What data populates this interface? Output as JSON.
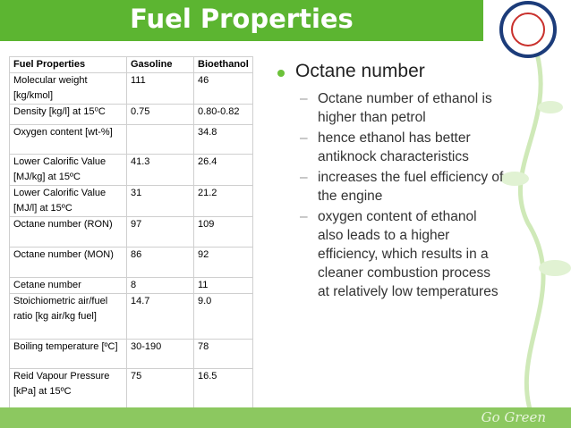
{
  "header": {
    "title": "Fuel Properties"
  },
  "table": {
    "columns": [
      "Fuel Properties",
      "Gasoline",
      "Bioethanol"
    ],
    "rows": [
      [
        "Molecular weight [kg/kmol]",
        "111",
        "46"
      ],
      [
        "Density [kg/l] at 15⁰C",
        "0.75",
        "0.80-0.82"
      ],
      [
        "Oxygen content [wt-%]",
        null,
        "34.8"
      ],
      [
        "Lower Calorific Value [MJ/kg] at 15ºC",
        "41.3",
        "26.4"
      ],
      [
        "Lower Calorific Value [MJ/l] at 15ºC",
        "31",
        "21.2"
      ],
      [
        "Octane number (RON)",
        "97",
        "109"
      ],
      [
        "Octane number (MON)",
        "86",
        "92"
      ],
      [
        "Cetane number",
        "8",
        "11"
      ],
      [
        "Stoichiometric air/fuel ratio [kg air/kg fuel]",
        "14.7",
        "9.0"
      ],
      [
        "Boiling temperature [ºC]",
        "30-190",
        "78"
      ],
      [
        "Reid Vapour Pressure [kPa] at 15ºC",
        "75",
        "16.5"
      ]
    ]
  },
  "bullets": {
    "main": "Octane number",
    "items": [
      "Octane number of ethanol is higher than petrol",
      "hence ethanol has better antiknock characteristics",
      "increases the fuel efficiency of the engine",
      "oxygen content of ethanol also leads to a higher efficiency, which results in a cleaner combustion process at relatively low temperatures"
    ]
  },
  "footer": {
    "tagline": "Go Green"
  }
}
